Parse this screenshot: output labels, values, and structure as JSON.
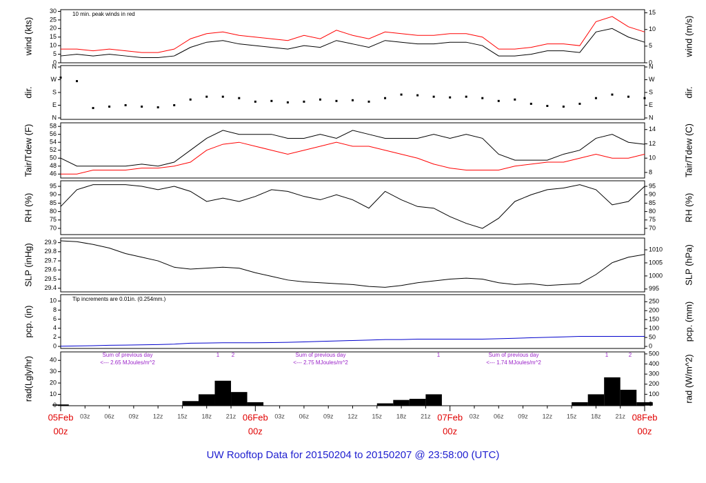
{
  "title": "UW Rooftop Data for 20150204  to  20150207 @ 23:58:00  (UTC)",
  "x_axis": {
    "xlim": [
      0,
      72
    ],
    "x": [
      0,
      2,
      4,
      6,
      8,
      10,
      12,
      14,
      16,
      18,
      20,
      22,
      24,
      26,
      28,
      30,
      32,
      34,
      36,
      38,
      40,
      42,
      44,
      46,
      48,
      50,
      52,
      54,
      56,
      58,
      60,
      62,
      64,
      66,
      68,
      70,
      72
    ],
    "xticks": [
      {
        "value": 0,
        "label": "05Feb",
        "sublabel": "00z"
      },
      {
        "value": 3,
        "label": "03z"
      },
      {
        "value": 6,
        "label": "06z"
      },
      {
        "value": 9,
        "label": "09z"
      },
      {
        "value": 12,
        "label": "12z"
      },
      {
        "value": 15,
        "label": "15z"
      },
      {
        "value": 18,
        "label": "18z"
      },
      {
        "value": 21,
        "label": "21z"
      },
      {
        "value": 24,
        "label": "06Feb",
        "sublabel": "00z"
      },
      {
        "value": 27,
        "label": "03z"
      },
      {
        "value": 30,
        "label": "06z"
      },
      {
        "value": 33,
        "label": "09z"
      },
      {
        "value": 36,
        "label": "12z"
      },
      {
        "value": 39,
        "label": "15z"
      },
      {
        "value": 42,
        "label": "18z"
      },
      {
        "value": 45,
        "label": "21z"
      },
      {
        "value": 48,
        "label": "07Feb",
        "sublabel": "00z"
      },
      {
        "value": 51,
        "label": "03z"
      },
      {
        "value": 54,
        "label": "06z"
      },
      {
        "value": 57,
        "label": "09z"
      },
      {
        "value": 60,
        "label": "12z"
      },
      {
        "value": 63,
        "label": "15z"
      },
      {
        "value": 66,
        "label": "18z"
      },
      {
        "value": 69,
        "label": "21z"
      },
      {
        "value": 72,
        "label": "08Feb",
        "sublabel": "00z"
      }
    ]
  },
  "chart_data": [
    {
      "type": "line",
      "ylabel": "wind (kts)",
      "y2label": "wind (m/s)",
      "annotation": "10 min. peak winds in red",
      "ylim": [
        0,
        31
      ],
      "yticks": [
        0,
        5,
        10,
        15,
        20,
        25,
        30
      ],
      "y2lim": [
        0,
        15.95
      ],
      "y2ticks": [
        0,
        5,
        10,
        15
      ],
      "series": [
        {
          "name": "wind",
          "color": "#000000",
          "values": [
            4,
            5,
            4,
            5,
            4,
            3,
            3,
            4,
            9,
            12,
            13,
            11,
            10,
            9,
            8,
            10,
            9,
            13,
            11,
            9,
            13,
            12,
            11,
            11,
            12,
            12,
            10,
            4,
            4,
            5,
            7,
            7,
            6,
            18,
            20,
            15,
            12
          ]
        },
        {
          "name": "peak",
          "color": "#ff0000",
          "values": [
            8,
            8,
            7,
            8,
            7,
            6,
            6,
            8,
            14,
            17,
            18,
            16,
            15,
            14,
            13,
            16,
            14,
            19,
            16,
            14,
            18,
            17,
            16,
            16,
            17,
            17,
            15,
            8,
            8,
            9,
            11,
            11,
            10,
            24,
            27,
            21,
            18
          ]
        }
      ]
    },
    {
      "type": "scatter",
      "ylabel": "dir.",
      "y2label": "dir.",
      "ylim": [
        -10,
        370
      ],
      "yticks": [
        {
          "value": 0,
          "label": "N"
        },
        {
          "value": 90,
          "label": "E"
        },
        {
          "value": 180,
          "label": "S"
        },
        {
          "value": 270,
          "label": "W"
        },
        {
          "value": 360,
          "label": "N"
        }
      ],
      "y2lim": [
        -10,
        370
      ],
      "y2ticks": [
        {
          "value": 0,
          "label": "N"
        },
        {
          "value": 90,
          "label": "E"
        },
        {
          "value": 180,
          "label": "S"
        },
        {
          "value": 270,
          "label": "W"
        },
        {
          "value": 360,
          "label": "N"
        }
      ],
      "series": [
        {
          "name": "dir",
          "color": "#000000",
          "values": [
            285,
            260,
            70,
            80,
            90,
            80,
            75,
            90,
            130,
            150,
            150,
            140,
            115,
            120,
            110,
            115,
            130,
            120,
            125,
            115,
            140,
            165,
            160,
            150,
            145,
            150,
            140,
            120,
            130,
            100,
            85,
            80,
            100,
            140,
            165,
            150,
            140
          ]
        }
      ]
    },
    {
      "type": "line",
      "ylabel": "Tair/Tdew (F)",
      "y2label": "Tair/Tdew (C)",
      "ylim": [
        45,
        58.9
      ],
      "yticks": [
        46,
        48,
        50,
        52,
        54,
        56,
        58
      ],
      "y2lim": [
        7.22,
        14.94
      ],
      "y2ticks": [
        8,
        10,
        12,
        14
      ],
      "series": [
        {
          "name": "Tair",
          "color": "#000000",
          "values": [
            50,
            48,
            48,
            48,
            48,
            48.5,
            48,
            49,
            52,
            55,
            57,
            56,
            56,
            56,
            55,
            55,
            56,
            55,
            57,
            56,
            55,
            55,
            55,
            56,
            55,
            56,
            55,
            51,
            49.5,
            49.5,
            49.5,
            51,
            52,
            55,
            56,
            54,
            53.5
          ]
        },
        {
          "name": "Tdew",
          "color": "#ff0000",
          "values": [
            46,
            46,
            47,
            47,
            47,
            47.5,
            47.5,
            48,
            49,
            52,
            53.5,
            54,
            53,
            52,
            51,
            52,
            53,
            54,
            53,
            53,
            52,
            51,
            50,
            48.5,
            47.5,
            47,
            47,
            47,
            48,
            48.5,
            49,
            49,
            50,
            51,
            50,
            50,
            51
          ]
        }
      ]
    },
    {
      "type": "line",
      "ylabel": "RH (%)",
      "y2label": "RH (%)",
      "ylim": [
        66.3,
        98.3
      ],
      "yticks": [
        70,
        75,
        80,
        85,
        90,
        95
      ],
      "y2lim": [
        66.3,
        98.3
      ],
      "y2ticks": [
        70,
        75,
        80,
        85,
        90,
        95
      ],
      "series": [
        {
          "name": "RH",
          "color": "#000000",
          "values": [
            83,
            93,
            96,
            96,
            96,
            95,
            93,
            95,
            92,
            86,
            88,
            86,
            89,
            93,
            92,
            89,
            87,
            90,
            87,
            82,
            92,
            87,
            83,
            82,
            77,
            73,
            70,
            76,
            86,
            90,
            93,
            94,
            96,
            93,
            84,
            86,
            95
          ]
        }
      ]
    },
    {
      "type": "line",
      "ylabel": "SLP (inHg)",
      "y2label": "SLP (hPa)",
      "ylim": [
        29.36,
        29.95
      ],
      "yticks": [
        29.4,
        29.5,
        29.6,
        29.7,
        29.8,
        29.9
      ],
      "y2lim": [
        993.9,
        1014.5
      ],
      "y2ticks": [
        995,
        1000,
        1005,
        1010
      ],
      "series": [
        {
          "name": "SLP",
          "color": "#000000",
          "values": [
            29.92,
            29.91,
            29.88,
            29.84,
            29.78,
            29.74,
            29.7,
            29.63,
            29.61,
            29.62,
            29.63,
            29.62,
            29.57,
            29.53,
            29.49,
            29.47,
            29.46,
            29.45,
            29.44,
            29.42,
            29.41,
            29.43,
            29.46,
            29.48,
            29.5,
            29.51,
            29.5,
            29.46,
            29.44,
            29.45,
            29.43,
            29.44,
            29.45,
            29.55,
            29.68,
            29.74,
            29.77
          ]
        }
      ]
    },
    {
      "type": "line",
      "ylabel": "pcp. (in)",
      "y2label": "pcp. (mm)",
      "annotation": "Tip increments are 0.01in. (0.254mm.)",
      "ylim": [
        -0.45,
        11.4
      ],
      "yticks": [
        0,
        2,
        4,
        6,
        8,
        10
      ],
      "y2lim": [
        -11.4,
        289.6
      ],
      "y2ticks": [
        0,
        50,
        100,
        150,
        200,
        250
      ],
      "series": [
        {
          "name": "pcp",
          "color": "#0000cc",
          "values": [
            0.05,
            0.1,
            0.15,
            0.25,
            0.3,
            0.35,
            0.4,
            0.5,
            0.7,
            0.75,
            0.8,
            0.8,
            0.8,
            0.85,
            0.9,
            1.0,
            1.1,
            1.2,
            1.3,
            1.4,
            1.5,
            1.5,
            1.6,
            1.6,
            1.6,
            1.6,
            1.6,
            1.7,
            1.8,
            1.9,
            2.0,
            2.1,
            2.2,
            2.2,
            2.2,
            2.2,
            2.2
          ]
        }
      ]
    },
    {
      "type": "bar",
      "ylabel": "rad(Lgly/hr)",
      "y2label": "rad (W/m^2)",
      "ylim": [
        -0.1,
        47.5
      ],
      "yticks": [
        0,
        10,
        20,
        30,
        40
      ],
      "y2lim": [
        -13.7,
        520
      ],
      "y2ticks": [
        0,
        100,
        200,
        300,
        400,
        500
      ],
      "annotations": [
        {
          "text": "Sum of previous day",
          "detail": "<--- 2.65 MJoules/m^2"
        },
        {
          "text": "Sum of previous day",
          "detail": "<--- 2.75 MJoules/m^2"
        },
        {
          "text": "Sum of previous day",
          "detail": "<--- 1.74 MJoules/m^2"
        }
      ],
      "markers": [
        "1",
        "2",
        "1",
        "1",
        "2"
      ],
      "series": [
        {
          "name": "rad",
          "color": "#000000",
          "values": [
            1,
            0,
            0,
            0,
            0,
            0,
            0,
            0,
            4,
            10,
            22,
            12,
            3,
            0,
            0,
            0,
            0,
            0,
            0,
            0,
            2,
            5,
            6,
            10,
            0,
            0,
            0,
            0,
            0,
            0,
            0,
            0,
            3,
            10,
            25,
            14,
            3
          ]
        }
      ]
    }
  ]
}
